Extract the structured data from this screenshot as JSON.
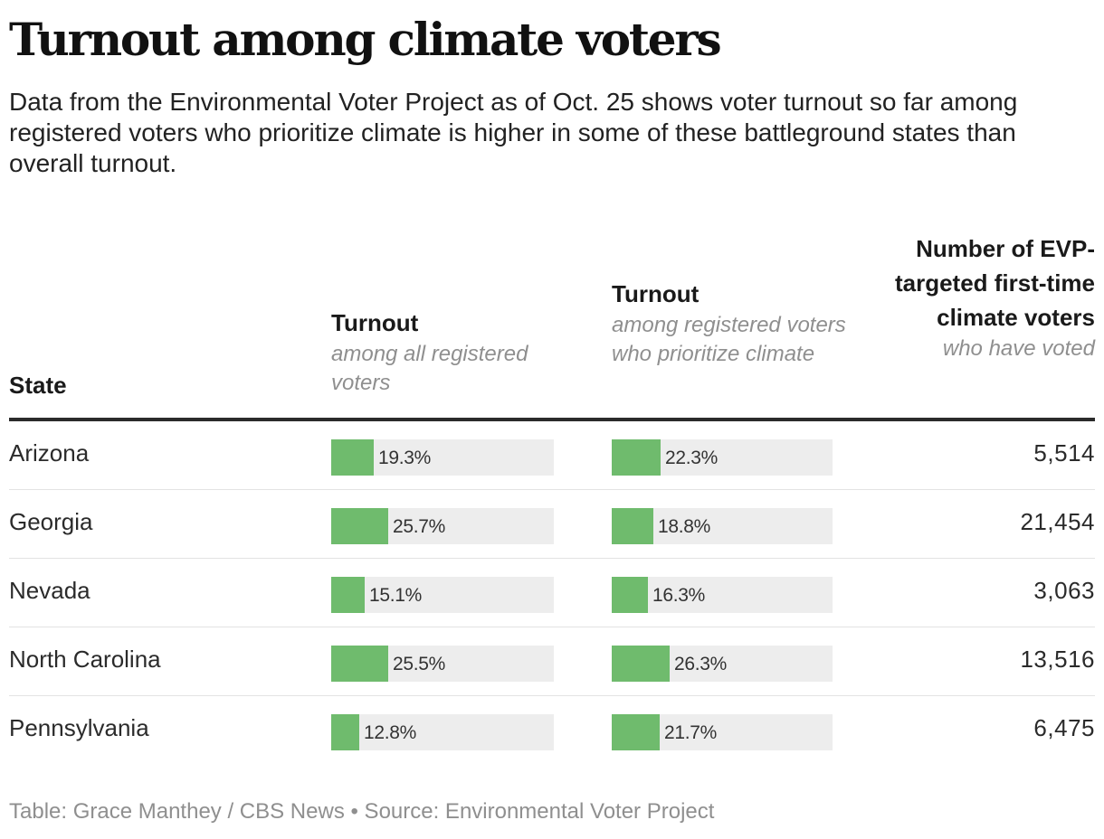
{
  "title": "Turnout among climate voters",
  "subtitle": "Data from the Environmental Voter Project as of Oct. 25 shows voter turnout so far among registered voters who prioritize climate is higher in some of these battleground states than overall turnout.",
  "columns": {
    "state": "State",
    "all": {
      "label": "Turnout",
      "sub": "among all registered voters"
    },
    "climate": {
      "label": "Turnout",
      "sub": "among registered voters who prioritize climate"
    },
    "evp": {
      "label": "Number of EVP-targeted first-time climate voters",
      "sub": "who have voted"
    }
  },
  "chart_data": {
    "type": "table",
    "columns": [
      "State",
      "Turnout among all registered voters",
      "Turnout among registered voters who prioritize climate",
      "Number of EVP-targeted first-time climate voters who have voted"
    ],
    "bar_scale_max": 100,
    "rows": [
      {
        "state": "Arizona",
        "all_pct": 19.3,
        "all_label": "19.3%",
        "climate_pct": 22.3,
        "climate_label": "22.3%",
        "evp_voters": "5,514"
      },
      {
        "state": "Georgia",
        "all_pct": 25.7,
        "all_label": "25.7%",
        "climate_pct": 18.8,
        "climate_label": "18.8%",
        "evp_voters": "21,454"
      },
      {
        "state": "Nevada",
        "all_pct": 15.1,
        "all_label": "15.1%",
        "climate_pct": 16.3,
        "climate_label": "16.3%",
        "evp_voters": "3,063"
      },
      {
        "state": "North Carolina",
        "all_pct": 25.5,
        "all_label": "25.5%",
        "climate_pct": 26.3,
        "climate_label": "26.3%",
        "evp_voters": "13,516"
      },
      {
        "state": "Pennsylvania",
        "all_pct": 12.8,
        "all_label": "12.8%",
        "climate_pct": 21.7,
        "climate_label": "21.7%",
        "evp_voters": "6,475"
      }
    ]
  },
  "colors": {
    "bar": "#6fbb6d",
    "track": "#ededed",
    "rule": "#2b2b2b"
  },
  "footer": "Table: Grace Manthey / CBS News • Source: Environmental Voter Project"
}
